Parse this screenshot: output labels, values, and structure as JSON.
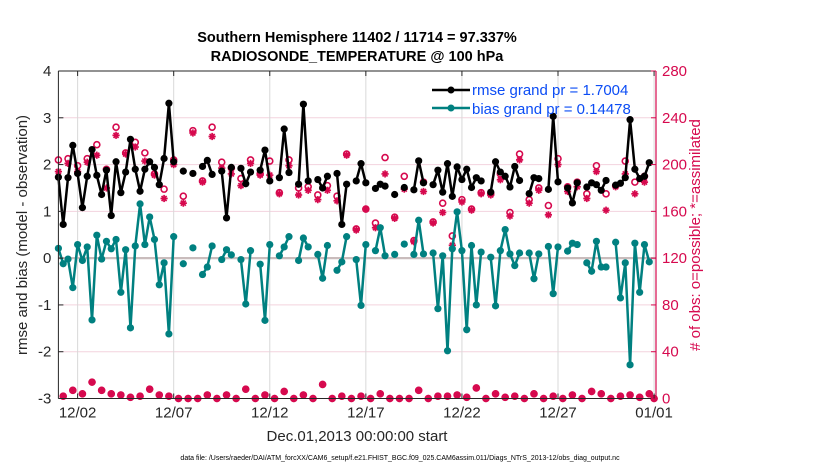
{
  "chart_data": {
    "type": "line",
    "title": [
      "Southern Hemisphere 11402 / 11714 = 97.337%",
      "RADIOSONDE_TEMPERATURE @ 100 hPa"
    ],
    "xlabel": "Dec.01,2013 00:00:00 start",
    "ylabel_left": "rmse and bias (model - observation)",
    "ylabel_right": "# of obs: o=possible; *=assimilated",
    "footnote": "data file: /Users/raeder/DAI/ATM_forcXX/CAM6_setup/f.e21.FHIST_BGC.f09_025.CAM6assim.011/Diags_NTrS_2013-12/obs_diag_output.nc",
    "x_units": "days since Dec.01,2013 00:00:00",
    "x_start": 0,
    "x_step": 0.25,
    "xlim": [
      0,
      31.1
    ],
    "xticks": [
      1,
      6,
      11,
      16,
      21,
      26,
      31
    ],
    "xtick_labels": [
      "12/02",
      "12/07",
      "12/12",
      "12/17",
      "12/22",
      "12/27",
      "01/01"
    ],
    "ylim_left": [
      -3,
      4
    ],
    "yticks_left": [
      4,
      3,
      2,
      1,
      0,
      -1,
      -2,
      -3
    ],
    "ylim_right": [
      0,
      280
    ],
    "yticks_right": [
      280,
      240,
      200,
      160,
      120,
      80,
      40,
      0
    ],
    "grid": true,
    "legend_placement": "top-right",
    "colors": {
      "rmse": "#000000",
      "bias": "#008080",
      "obs": "#d6094e",
      "legend_text": "#0b4cf5",
      "grid_h": "#f3d3de",
      "grid_v": "#d9d9d9",
      "zero": "#c9bcbc"
    },
    "series": [
      {
        "name": "rmse grand pr = 1.7004",
        "axis": "left",
        "marker": "filled-circle",
        "values": [
          1.73,
          0.72,
          1.72,
          2.41,
          1.81,
          1.08,
          1.75,
          2.32,
          1.77,
          1.36,
          1.88,
          0.91,
          2.06,
          1.4,
          1.84,
          2.54,
          1.9,
          1.43,
          1.9,
          2.06,
          1.94,
          1.57,
          2.13,
          3.31,
          2.06,
          null,
          1.86,
          null,
          1.81,
          null,
          1.96,
          2.09,
          1.79,
          null,
          1.86,
          0.86,
          1.94,
          null,
          1.92,
          1.59,
          1.84,
          null,
          1.88,
          2.31,
          1.65,
          null,
          1.72,
          2.76,
          1.83,
          null,
          1.58,
          3.29,
          1.65,
          null,
          1.68,
          1.5,
          1.75,
          null,
          1.81,
          0.72,
          1.58,
          null,
          1.65,
          2.02,
          1.61,
          null,
          1.49,
          1.58,
          1.54,
          null,
          1.36,
          null,
          1.51,
          null,
          1.46,
          2.08,
          1.61,
          null,
          1.57,
          1.88,
          1.41,
          2.02,
          1.32,
          1.95,
          1.68,
          1.9,
          1.51,
          1.72,
          1.65,
          null,
          1.41,
          2.06,
          1.84,
          1.75,
          1.52,
          1.96,
          1.66,
          null,
          1.38,
          1.72,
          1.7,
          null,
          1.47,
          3.03,
          1.63,
          null,
          1.5,
          1.18,
          1.61,
          null,
          1.52,
          1.61,
          1.57,
          1.45,
          1.66,
          null,
          1.56,
          1.6,
          1.72,
          2.96,
          1.9,
          1.7,
          1.75,
          2.04,
          null
        ]
      },
      {
        "name": "bias grand pr = 0.14478",
        "axis": "left",
        "marker": "filled-circle",
        "values": [
          0.21,
          -0.12,
          -0.02,
          -0.63,
          0.29,
          -0.05,
          0.24,
          -1.32,
          0.49,
          -0.02,
          0.36,
          0.2,
          0.4,
          -0.73,
          0.18,
          -1.49,
          0.26,
          1.16,
          0.29,
          0.88,
          0.4,
          -0.57,
          -0.1,
          -1.62,
          0.46,
          null,
          -0.12,
          null,
          0.22,
          null,
          -0.35,
          -0.19,
          0.26,
          null,
          -0.03,
          0.18,
          0.07,
          null,
          -0.03,
          -0.98,
          0.16,
          null,
          -0.13,
          -1.33,
          0.29,
          null,
          0.05,
          0.24,
          0.46,
          null,
          -0.05,
          0.43,
          0.24,
          null,
          0.08,
          -0.43,
          0.27,
          null,
          -0.26,
          -0.08,
          0.46,
          null,
          -0.03,
          -1.01,
          0.29,
          null,
          0.16,
          0.65,
          0.05,
          null,
          0.08,
          null,
          0.3,
          null,
          0.08,
          0.81,
          0.09,
          null,
          0.11,
          -1.08,
          0.05,
          -1.98,
          0.2,
          0.99,
          0.16,
          -1.53,
          0.27,
          -1.0,
          0.13,
          null,
          0.02,
          -1.02,
          0.16,
          0.61,
          0.09,
          -0.16,
          0.11,
          null,
          0.11,
          -0.44,
          0.09,
          null,
          0.25,
          -0.76,
          0.24,
          null,
          0.15,
          0.32,
          0.29,
          null,
          -0.1,
          -0.28,
          0.36,
          -0.19,
          -0.19,
          null,
          0.34,
          -0.85,
          -0.1,
          -2.28,
          0.32,
          -0.73,
          0.29,
          -0.08,
          null
        ]
      },
      {
        "name": "obs possible",
        "axis": "right",
        "marker": "open-circle",
        "values": [
          204,
          2,
          205,
          7,
          199,
          4,
          205,
          14,
          217,
          7,
          196,
          4,
          232,
          3,
          210,
          1,
          219,
          2,
          210,
          8,
          192,
          3,
          179,
          2,
          204,
          0,
          173,
          0,
          229,
          0,
          186,
          3,
          232,
          0,
          202,
          3,
          197,
          0,
          188,
          8,
          204,
          0,
          192,
          3,
          203,
          0,
          176,
          6,
          204,
          0,
          180,
          3,
          181,
          0,
          174,
          12,
          182,
          0,
          173,
          2,
          209,
          0,
          145,
          2,
          162,
          0,
          150,
          4,
          206,
          0,
          155,
          0,
          190,
          0,
          135,
          7,
          185,
          0,
          151,
          2,
          167,
          2,
          139,
          3,
          170,
          1,
          162,
          9,
          176,
          0,
          175,
          4,
          192,
          1,
          159,
          2,
          209,
          0,
          170,
          4,
          180,
          0,
          165,
          2,
          205,
          0,
          181,
          3,
          185,
          0,
          175,
          6,
          199,
          4,
          175,
          0,
          182,
          2,
          203,
          3,
          185,
          1,
          190,
          4,
          0
        ]
      },
      {
        "name": "obs assimilated",
        "axis": "right",
        "marker": "asterisk",
        "values": [
          194,
          2,
          201,
          7,
          194,
          4,
          202,
          14,
          208,
          7,
          180,
          4,
          225,
          3,
          209,
          1,
          215,
          2,
          203,
          8,
          191,
          3,
          171,
          2,
          200,
          0,
          167,
          0,
          227,
          0,
          185,
          3,
          224,
          0,
          197,
          3,
          192,
          0,
          182,
          8,
          201,
          0,
          191,
          3,
          191,
          0,
          175,
          6,
          199,
          0,
          174,
          3,
          178,
          0,
          170,
          12,
          178,
          0,
          169,
          2,
          208,
          0,
          144,
          2,
          162,
          0,
          146,
          4,
          192,
          0,
          154,
          0,
          179,
          0,
          134,
          7,
          177,
          0,
          150,
          2,
          159,
          2,
          131,
          3,
          168,
          1,
          161,
          9,
          175,
          0,
          174,
          4,
          187,
          1,
          156,
          2,
          204,
          0,
          167,
          4,
          178,
          0,
          157,
          2,
          200,
          0,
          177,
          3,
          181,
          0,
          171,
          6,
          194,
          4,
          161,
          0,
          181,
          2,
          192,
          3,
          175,
          1,
          185,
          4,
          0
        ]
      }
    ]
  }
}
